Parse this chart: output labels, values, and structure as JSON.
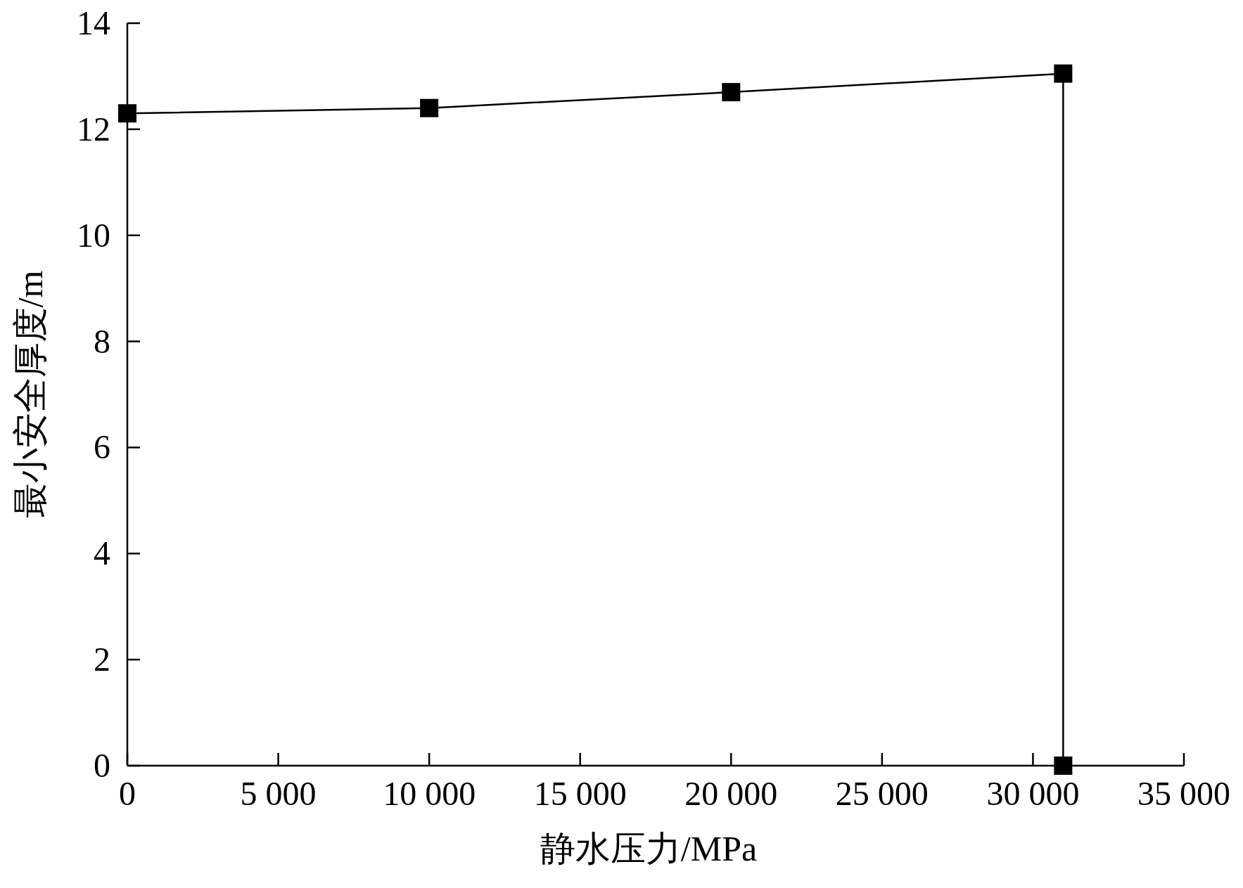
{
  "chart_data": {
    "type": "line",
    "xlabel": "静水压力/MPa",
    "ylabel": "最小安全厚度/m",
    "x": [
      0,
      10000,
      20000,
      31000,
      31000
    ],
    "series": [
      {
        "color": "#000000",
        "values": [
          12.3,
          12.4,
          12.7,
          13.05,
          0
        ]
      }
    ],
    "marker": "square",
    "line_style": "solid",
    "grid": false,
    "xlim": [
      0,
      35000
    ],
    "ylim": [
      0,
      14
    ],
    "xticks": [
      0,
      {
        "value": 5000,
        "label": "5 000"
      },
      {
        "value": 10000,
        "label": "10 000"
      },
      {
        "value": 15000,
        "label": "15 000"
      },
      {
        "value": 20000,
        "label": "20 000"
      },
      {
        "value": 25000,
        "label": "25 000"
      },
      {
        "value": 30000,
        "label": "30 000"
      },
      {
        "value": 35000,
        "label": "35 000"
      }
    ],
    "yticks": [
      0,
      2,
      4,
      6,
      8,
      10,
      12,
      14
    ]
  }
}
